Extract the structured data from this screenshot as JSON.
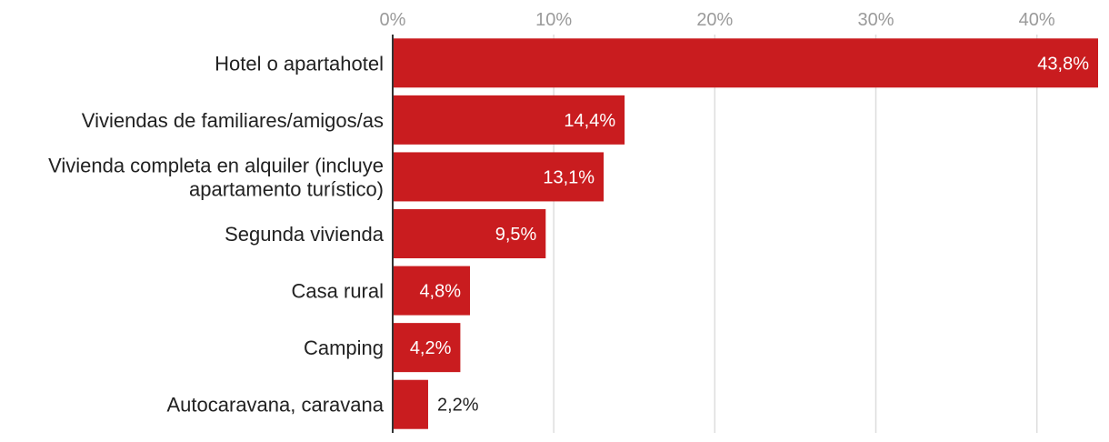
{
  "chart_data": {
    "type": "bar",
    "orientation": "horizontal",
    "title": "",
    "xlabel": "",
    "ylabel": "",
    "categories": [
      [
        "Hotel o apartahotel"
      ],
      [
        "Viviendas de familiares/amigos/as"
      ],
      [
        "Vivienda completa en alquiler (incluye",
        "apartamento turístico)"
      ],
      [
        "Segunda vivienda"
      ],
      [
        "Casa rural"
      ],
      [
        "Camping"
      ],
      [
        "Autocaravana, caravana"
      ]
    ],
    "values": [
      43.8,
      14.4,
      13.1,
      9.5,
      4.8,
      4.2,
      2.2
    ],
    "value_labels": [
      "43,8%",
      "14,4%",
      "13,1%",
      "9,5%",
      "4,8%",
      "4,2%",
      "2,2%"
    ],
    "xlim": [
      0,
      43.8
    ],
    "x_ticks": [
      0,
      10,
      20,
      30,
      40
    ],
    "x_tick_labels": [
      "0%",
      "10%",
      "20%",
      "30%",
      "40%"
    ],
    "x_axis_position": "top",
    "grid": true,
    "legend": "none",
    "colors": {
      "bar": "#c91c1f",
      "grid": "#dddddd",
      "axis": "#333333",
      "label_inside": "#ffffff",
      "label_outside": "#222222"
    }
  }
}
